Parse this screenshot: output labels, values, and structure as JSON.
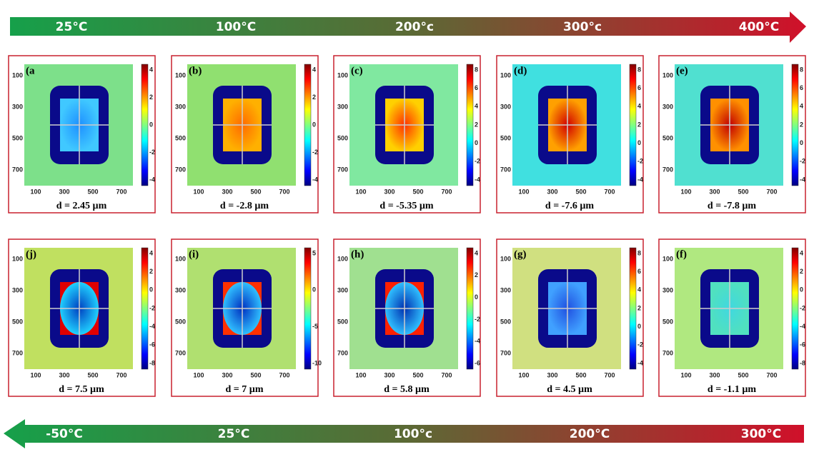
{
  "top_arrow": {
    "labels": [
      "25°C",
      "100°C",
      "200°c",
      "300°c",
      "400°C"
    ]
  },
  "bottom_arrow": {
    "labels": [
      "-50°C",
      "25°C",
      "100°c",
      "200°C",
      "300°C"
    ]
  },
  "panels": [
    {
      "label": "(a",
      "caption": "d = 2.45 µm",
      "yticks": [
        100,
        300,
        500,
        700
      ],
      "xticks": [
        100,
        300,
        500,
        700
      ],
      "colorbar": [
        4,
        2,
        0,
        -2,
        -4
      ]
    },
    {
      "label": "(b)",
      "caption": "d = -2.8 µm",
      "yticks": [
        100,
        300,
        500,
        700
      ],
      "xticks": [
        100,
        300,
        500,
        700
      ],
      "colorbar": [
        4,
        2,
        0,
        -2,
        -4
      ]
    },
    {
      "label": "(c)",
      "caption": "d = -5.35 µm",
      "yticks": [
        100,
        300,
        500,
        700
      ],
      "xticks": [
        100,
        300,
        500,
        700
      ],
      "colorbar": [
        8,
        6,
        4,
        2,
        0,
        -2,
        -4
      ]
    },
    {
      "label": "(d)",
      "caption": "d = -7.6 µm",
      "yticks": [
        100,
        300,
        500,
        700
      ],
      "xticks": [
        100,
        300,
        500,
        700
      ],
      "colorbar": [
        8,
        6,
        4,
        2,
        0,
        -2,
        -4
      ]
    },
    {
      "label": "(e)",
      "caption": "d = -7.8 µm",
      "yticks": [
        100,
        300,
        500,
        700
      ],
      "xticks": [
        100,
        300,
        500,
        700
      ],
      "colorbar": [
        8,
        6,
        4,
        2,
        0,
        -2,
        -4
      ]
    },
    {
      "label": "(j)",
      "caption": "d = 7.5 µm",
      "yticks": [
        100,
        300,
        500,
        700
      ],
      "xticks": [
        100,
        300,
        500,
        700
      ],
      "colorbar": [
        4,
        2,
        0,
        -2,
        -4,
        -6,
        -8
      ]
    },
    {
      "label": "(i)",
      "caption": "d = 7 µm",
      "yticks": [
        100,
        300,
        500,
        700
      ],
      "xticks": [
        100,
        300,
        500,
        700
      ],
      "colorbar": [
        5,
        0,
        -5,
        -10
      ]
    },
    {
      "label": "(h)",
      "caption": "d = 5.8 µm",
      "yticks": [
        100,
        300,
        500,
        700
      ],
      "xticks": [
        100,
        300,
        500,
        700
      ],
      "colorbar": [
        4,
        2,
        0,
        -2,
        -4,
        -6
      ]
    },
    {
      "label": "(g)",
      "caption": "d = 4.5 µm",
      "yticks": [
        100,
        300,
        500,
        700
      ],
      "xticks": [
        100,
        300,
        500,
        700
      ],
      "colorbar": [
        8,
        6,
        4,
        2,
        0,
        -2,
        -4
      ]
    },
    {
      "label": "(f)",
      "caption": "d = -1.1 µm",
      "yticks": [
        100,
        300,
        500,
        700
      ],
      "xticks": [
        100,
        300,
        500,
        700
      ],
      "colorbar": [
        4,
        2,
        0,
        -2,
        -4,
        -6,
        -8
      ]
    }
  ]
}
